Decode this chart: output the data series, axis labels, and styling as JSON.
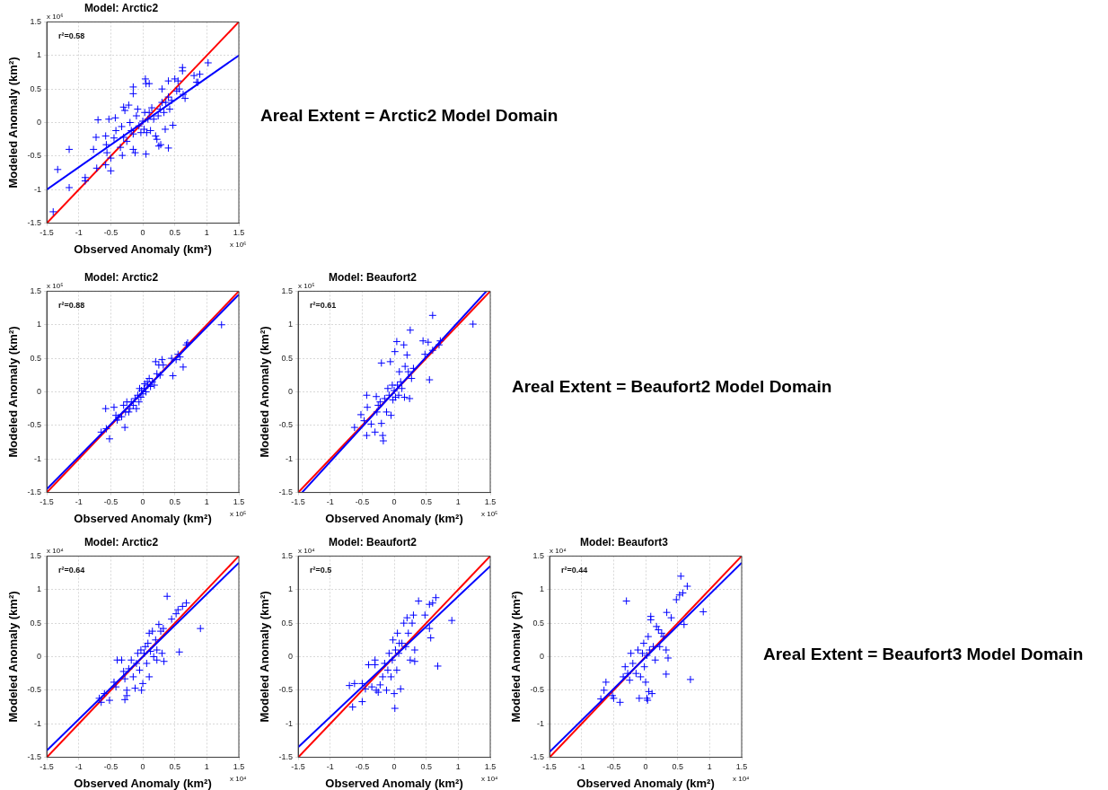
{
  "chart_data": [
    {
      "type": "scatter",
      "title": "Model: Arctic2",
      "xlabel": "Observed Anomaly (km²)",
      "ylabel": "Modeled Anomaly (km²)",
      "annotations": [
        "r²=0.58",
        "x 10⁶",
        "x 10⁶"
      ],
      "xlim": [
        -1.5,
        1.5
      ],
      "ylim": [
        -1.5,
        1.5
      ],
      "xticks": [
        -1.5,
        -1,
        -0.5,
        0,
        0.5,
        1,
        1.5
      ],
      "yticks": [
        -1.5,
        -1,
        -0.5,
        0,
        0.5,
        1,
        1.5
      ],
      "grid": true,
      "series": [
        {
          "type": "scatter",
          "color": "#0000ff",
          "marker": "cross",
          "x": [
            -1.4,
            -1.33,
            -1.15,
            -1.15,
            -0.9,
            -0.9,
            -0.77,
            -0.73,
            -0.72,
            -0.7,
            -0.58,
            -0.57,
            -0.56,
            -0.58,
            -0.5,
            -0.5,
            -0.53,
            -0.45,
            -0.42,
            -0.43,
            -0.35,
            -0.32,
            -0.33,
            -0.3,
            -0.3,
            -0.28,
            -0.25,
            -0.22,
            -0.2,
            -0.18,
            -0.15,
            -0.15,
            -0.15,
            -0.15,
            -0.12,
            -0.1,
            -0.08,
            -0.06,
            -0.03,
            0,
            0.02,
            0.03,
            0.04,
            0.05,
            0.05,
            0.06,
            0.08,
            0.1,
            0.1,
            0.12,
            0.14,
            0.17,
            0.2,
            0.22,
            0.24,
            0.25,
            0.27,
            0.28,
            0.3,
            0.3,
            0.33,
            0.35,
            0.36,
            0.4,
            0.4,
            0.4,
            0.42,
            0.45,
            0.47,
            0.5,
            0.53,
            0.55,
            0.57,
            0.62,
            0.62,
            0.63,
            0.66,
            0.8,
            0.84,
            0.86,
            0.89,
            1.02
          ],
          "values": [
            -1.33,
            -0.7,
            -0.4,
            -0.97,
            -0.82,
            -0.87,
            -0.4,
            -0.22,
            -0.68,
            0.04,
            -0.2,
            -0.33,
            -0.45,
            -0.63,
            -0.53,
            -0.72,
            0.05,
            -0.23,
            -0.12,
            0.07,
            -0.37,
            -0.49,
            -0.06,
            -0.22,
            0.23,
            0.18,
            -0.28,
            0.26,
            0,
            -0.12,
            -0.4,
            -0.17,
            0.53,
            0.43,
            -0.45,
            0.1,
            0.2,
            -0.05,
            -0.15,
            0.02,
            -0.1,
            0.15,
            0.65,
            0.58,
            -0.47,
            -0.15,
            0.05,
            0.15,
            0.58,
            -0.12,
            0.22,
            0.05,
            -0.2,
            -0.25,
            0.1,
            -0.35,
            0.2,
            -0.33,
            0.3,
            0.5,
            0.15,
            -0.1,
            0.3,
            0.38,
            0.62,
            -0.38,
            0.2,
            0.33,
            -0.04,
            0.65,
            0.47,
            0.62,
            0.5,
            0.82,
            0.77,
            0.42,
            0.36,
            0.7,
            0.6,
            0.6,
            0.72,
            0.89
          ]
        },
        {
          "type": "line",
          "color": "#0000ff",
          "x": [
            -1.5,
            1.5
          ],
          "values": [
            -1,
            1
          ]
        },
        {
          "type": "line",
          "color": "#ff0000",
          "x": [
            -1.5,
            1.5
          ],
          "values": [
            -1.5,
            1.5
          ]
        }
      ]
    },
    {
      "type": "other",
      "title": "Areal Extent = Arctic2 Model Domain"
    },
    {
      "type": "scatter",
      "title": "Model: Arctic2",
      "xlabel": "Observed Anomaly (km²)",
      "ylabel": "Modeled Anomaly (km²)",
      "annotations": [
        "r²=0.88",
        "x 10⁵",
        "x 10⁵"
      ],
      "xlim": [
        -1.5,
        1.5
      ],
      "ylim": [
        -1.5,
        1.5
      ],
      "xticks": [
        -1.5,
        -1,
        -0.5,
        0,
        0.5,
        1,
        1.5
      ],
      "yticks": [
        -1.5,
        -1,
        -0.5,
        0,
        0.5,
        1,
        1.5
      ],
      "grid": true,
      "series": [
        {
          "type": "scatter",
          "color": "#0000ff",
          "marker": "cross",
          "x": [
            -0.65,
            -0.58,
            -0.57,
            -0.52,
            -0.45,
            -0.42,
            -0.4,
            -0.38,
            -0.33,
            -0.3,
            -0.28,
            -0.27,
            -0.25,
            -0.22,
            -0.2,
            -0.18,
            -0.15,
            -0.12,
            -0.1,
            -0.08,
            -0.06,
            -0.05,
            -0.03,
            -0.02,
            0,
            0.02,
            0.03,
            0.05,
            0.07,
            0.08,
            0.1,
            0.12,
            0.15,
            0.18,
            0.2,
            0.22,
            0.25,
            0.27,
            0.3,
            0.32,
            0.45,
            0.47,
            0.52,
            0.55,
            0.58,
            0.63,
            0.68,
            0.7,
            1.23
          ],
          "values": [
            -0.6,
            -0.25,
            -0.55,
            -0.7,
            -0.23,
            -0.35,
            -0.42,
            -0.38,
            -0.37,
            -0.2,
            -0.53,
            -0.3,
            -0.15,
            -0.3,
            -0.25,
            -0.15,
            -0.2,
            -0.1,
            -0.25,
            -0.05,
            -0.15,
            0.05,
            -0.08,
            0.02,
            -0.03,
            0.05,
            0.12,
            0,
            0.15,
            0.1,
            0.2,
            0.08,
            0.15,
            0.1,
            0.45,
            0.27,
            0.4,
            0.25,
            0.48,
            0.4,
            0.5,
            0.24,
            0.48,
            0.56,
            0.52,
            0.37,
            0.7,
            0.73,
            1
          ]
        },
        {
          "type": "line",
          "color": "#0000ff",
          "x": [
            -1.5,
            1.5
          ],
          "values": [
            -1.45,
            1.45
          ]
        },
        {
          "type": "line",
          "color": "#ff0000",
          "x": [
            -1.5,
            1.5
          ],
          "values": [
            -1.5,
            1.5
          ]
        }
      ]
    },
    {
      "type": "scatter",
      "title": "Model: Beaufort2",
      "xlabel": "Observed Anomaly (km²)",
      "ylabel": "Modeled Anomaly (km²)",
      "annotations": [
        "r²=0.61",
        "x 10⁵",
        "x 10⁵"
      ],
      "xlim": [
        -1.5,
        1.5
      ],
      "ylim": [
        -1.5,
        1.5
      ],
      "xticks": [
        -1.5,
        -1,
        -0.5,
        0,
        0.5,
        1,
        1.5
      ],
      "yticks": [
        -1.5,
        -1,
        -0.5,
        0,
        0.5,
        1,
        1.5
      ],
      "grid": true,
      "series": [
        {
          "type": "scatter",
          "color": "#0000ff",
          "marker": "cross",
          "x": [
            -0.62,
            -0.52,
            -0.47,
            -0.43,
            -0.43,
            -0.42,
            -0.36,
            -0.3,
            -0.28,
            -0.27,
            -0.25,
            -0.22,
            -0.2,
            -0.2,
            -0.18,
            -0.17,
            -0.15,
            -0.12,
            -0.1,
            -0.08,
            -0.06,
            -0.05,
            -0.03,
            -0.02,
            0,
            0.01,
            0.02,
            0.04,
            0.05,
            0.07,
            0.08,
            0.1,
            0.12,
            0.15,
            0.16,
            0.17,
            0.2,
            0.22,
            0.24,
            0.25,
            0.27,
            0.3,
            0.45,
            0.48,
            0.53,
            0.55,
            0.6,
            0.6,
            0.7,
            0.72,
            1.23
          ],
          "values": [
            -0.53,
            -0.34,
            -0.43,
            -0.65,
            -0.05,
            -0.23,
            -0.48,
            -0.6,
            -0.07,
            -0.3,
            -0.2,
            -0.15,
            0.43,
            -0.47,
            -0.65,
            -0.73,
            -0.1,
            -0.3,
            0.05,
            -0.05,
            0.45,
            -0.35,
            0.1,
            -0.12,
            0.02,
            0.6,
            -0.08,
            0.75,
            0.1,
            -0.05,
            0.3,
            0.15,
            0.05,
            0.7,
            -0.08,
            0.38,
            0.55,
            0.3,
            -0.1,
            0.92,
            0.2,
            0.35,
            0.76,
            0.56,
            0.74,
            0.18,
            1.14,
            0.62,
            0.7,
            0.76,
            1.01
          ]
        },
        {
          "type": "line",
          "color": "#0000ff",
          "x": [
            -1.44,
            1.44
          ],
          "values": [
            -1.5,
            1.5
          ]
        },
        {
          "type": "line",
          "color": "#ff0000",
          "x": [
            -1.5,
            1.5
          ],
          "values": [
            -1.5,
            1.5
          ]
        }
      ]
    },
    {
      "type": "other",
      "title": "Areal Extent = Beaufort2 Model Domain"
    },
    {
      "type": "scatter",
      "title": "Model: Arctic2",
      "xlabel": "Observed Anomaly (km²)",
      "ylabel": "Modeled Anomaly (km²)",
      "annotations": [
        "r²=0.64",
        "x 10⁴",
        "x 10⁴"
      ],
      "xlim": [
        -1.5,
        1.5
      ],
      "ylim": [
        -1.5,
        1.5
      ],
      "xticks": [
        -1.5,
        -1,
        -0.5,
        0,
        0.5,
        1,
        1.5
      ],
      "yticks": [
        -1.5,
        -1,
        -0.5,
        0,
        0.5,
        1,
        1.5
      ],
      "grid": true,
      "series": [
        {
          "type": "scatter",
          "color": "#0000ff",
          "marker": "cross",
          "x": [
            -0.68,
            -0.65,
            -0.6,
            -0.52,
            -0.45,
            -0.42,
            -0.4,
            -0.33,
            -0.3,
            -0.28,
            -0.28,
            -0.25,
            -0.25,
            -0.22,
            -0.18,
            -0.15,
            -0.12,
            -0.1,
            -0.08,
            -0.05,
            -0.03,
            -0.02,
            0,
            0.02,
            0.04,
            0.06,
            0.08,
            0.1,
            0.1,
            0.12,
            0.15,
            0.17,
            0.2,
            0.22,
            0.22,
            0.25,
            0.28,
            0.3,
            0.32,
            0.33,
            0.38,
            0.45,
            0.52,
            0.55,
            0.57,
            0.62,
            0.68,
            0.9
          ],
          "values": [
            -0.62,
            -0.68,
            -0.55,
            -0.65,
            -0.38,
            -0.45,
            -0.05,
            -0.05,
            -0.22,
            -0.33,
            -0.64,
            -0.5,
            -0.58,
            -0.18,
            -0.05,
            -0.3,
            -0.47,
            -0.1,
            0.05,
            -0.2,
            0.1,
            -0.5,
            -0.4,
            0.05,
            0.15,
            -0.1,
            0.2,
            -0.3,
            0.35,
            0.08,
            0.38,
            0,
            0.25,
            -0.05,
            0.1,
            0.48,
            0.38,
            0.05,
            0.42,
            -0.07,
            0.9,
            0.56,
            0.64,
            0.7,
            0.07,
            0.75,
            0.8,
            0.42
          ]
        },
        {
          "type": "line",
          "color": "#0000ff",
          "x": [
            -1.5,
            1.5
          ],
          "values": [
            -1.4,
            1.4
          ]
        },
        {
          "type": "line",
          "color": "#ff0000",
          "x": [
            -1.5,
            1.5
          ],
          "values": [
            -1.5,
            1.5
          ]
        }
      ]
    },
    {
      "type": "scatter",
      "title": "Model: Beaufort2",
      "xlabel": "Observed Anomaly (km²)",
      "ylabel": "Modeled Anomaly (km²)",
      "annotations": [
        "r²=0.5",
        "x 10⁴",
        "x 10⁴"
      ],
      "xlim": [
        -1.5,
        1.5
      ],
      "ylim": [
        -1.5,
        1.5
      ],
      "xticks": [
        -1.5,
        -1,
        -0.5,
        0,
        0.5,
        1,
        1.5
      ],
      "yticks": [
        -1.5,
        -1,
        -0.5,
        0,
        0.5,
        1,
        1.5
      ],
      "grid": true,
      "series": [
        {
          "type": "scatter",
          "color": "#0000ff",
          "marker": "cross",
          "x": [
            -0.7,
            -0.65,
            -0.62,
            -0.5,
            -0.5,
            -0.45,
            -0.4,
            -0.35,
            -0.3,
            -0.3,
            -0.28,
            -0.25,
            -0.22,
            -0.18,
            -0.15,
            -0.12,
            -0.1,
            -0.08,
            -0.05,
            -0.03,
            -0.02,
            0,
            0.01,
            0.02,
            0.04,
            0.05,
            0.07,
            0.08,
            0.1,
            0.12,
            0.15,
            0.18,
            0.2,
            0.22,
            0.25,
            0.28,
            0.3,
            0.32,
            0.32,
            0.38,
            0.48,
            0.55,
            0.55,
            0.57,
            0.6,
            0.65,
            0.68,
            0.9
          ],
          "values": [
            -0.43,
            -0.75,
            -0.4,
            -0.67,
            -0.4,
            -0.48,
            -0.12,
            -0.45,
            -0.05,
            -0.12,
            -0.5,
            -0.53,
            -0.42,
            -0.3,
            -0.1,
            -0.5,
            -0.2,
            0.05,
            -0.3,
            -0.05,
            0.25,
            -0.55,
            -0.77,
            0.1,
            -0.2,
            0.35,
            0.05,
            0.2,
            -0.48,
            0.2,
            0.5,
            0.15,
            0.58,
            0.35,
            -0.05,
            0.5,
            0.62,
            -0.07,
            0.1,
            0.83,
            0.62,
            0.78,
            0.42,
            0.28,
            0.8,
            0.88,
            -0.14,
            0.54
          ]
        },
        {
          "type": "line",
          "color": "#0000ff",
          "x": [
            -1.5,
            1.5
          ],
          "values": [
            -1.35,
            1.35
          ]
        },
        {
          "type": "line",
          "color": "#ff0000",
          "x": [
            -1.5,
            1.5
          ],
          "values": [
            -1.5,
            1.5
          ]
        }
      ]
    },
    {
      "type": "scatter",
      "title": "Model: Beaufort3",
      "xlabel": "Observed Anomaly (km²)",
      "ylabel": "Modeled Anomaly (km²)",
      "annotations": [
        "r²=0.44",
        "x 10⁴",
        "x 10⁴"
      ],
      "xlim": [
        -1.5,
        1.5
      ],
      "ylim": [
        -1.5,
        1.5
      ],
      "xticks": [
        -1.5,
        -1,
        -0.5,
        0,
        0.5,
        1,
        1.5
      ],
      "yticks": [
        -1.5,
        -1,
        -0.5,
        0,
        0.5,
        1,
        1.5
      ],
      "grid": true,
      "series": [
        {
          "type": "scatter",
          "color": "#0000ff",
          "marker": "cross",
          "x": [
            -0.7,
            -0.65,
            -0.62,
            -0.52,
            -0.5,
            -0.4,
            -0.35,
            -0.32,
            -0.3,
            -0.28,
            -0.25,
            -0.23,
            -0.2,
            -0.15,
            -0.12,
            -0.1,
            -0.08,
            -0.05,
            -0.03,
            -0.02,
            0,
            0.02,
            0.02,
            0.03,
            0.04,
            0.05,
            0.06,
            0.08,
            0.08,
            0.1,
            0.12,
            0.15,
            0.17,
            0.2,
            0.22,
            0.25,
            0.28,
            0.32,
            0.32,
            0.33,
            0.35,
            0.4,
            0.48,
            0.53,
            0.55,
            0.58,
            0.6,
            0.65,
            0.7,
            0.9
          ],
          "values": [
            -0.63,
            -0.5,
            -0.38,
            -0.58,
            -0.62,
            -0.68,
            -0.3,
            -0.15,
            0.83,
            -0.25,
            -0.35,
            0.05,
            -0.1,
            -0.25,
            0.1,
            -0.62,
            -0.3,
            0.05,
            0.2,
            -0.15,
            -0.38,
            -0.62,
            0.02,
            -0.65,
            0.3,
            -0.52,
            0.1,
            0.55,
            0.6,
            -0.55,
            0.15,
            -0.05,
            0.45,
            0.4,
            0.15,
            0.35,
            0.3,
            0.1,
            -0.26,
            0.66,
            -0.02,
            0.58,
            0.85,
            0.92,
            1.2,
            0.95,
            0.48,
            1.05,
            -0.34,
            0.67
          ]
        },
        {
          "type": "line",
          "color": "#0000ff",
          "x": [
            -1.5,
            1.5
          ],
          "values": [
            -1.42,
            1.4
          ]
        },
        {
          "type": "line",
          "color": "#ff0000",
          "x": [
            -1.5,
            1.5
          ],
          "values": [
            -1.5,
            1.5
          ]
        }
      ]
    },
    {
      "type": "other",
      "title": "Areal Extent = Beaufort3 Model Domain"
    }
  ]
}
